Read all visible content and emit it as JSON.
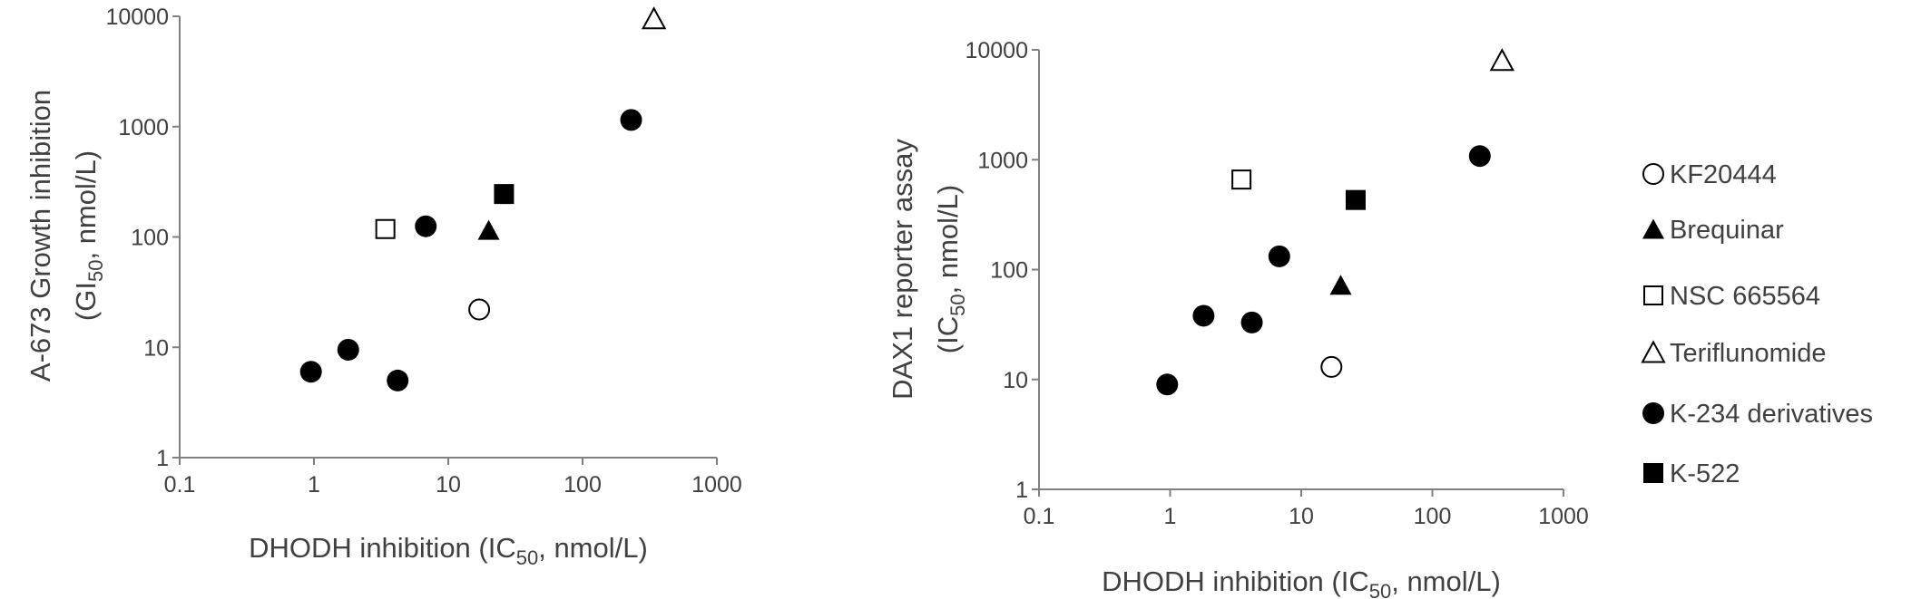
{
  "chart_data": [
    {
      "type": "scatter",
      "xscale": "log",
      "yscale": "log",
      "xlim": [
        0.1,
        1000
      ],
      "ylim": [
        1,
        10000
      ],
      "x_ticks": [
        "0.1",
        "1",
        "10",
        "100",
        "1000"
      ],
      "y_ticks": [
        "1",
        "10",
        "100",
        "1000",
        "10000"
      ],
      "xlabel": {
        "main": "DHODH inhibition (IC",
        "sub": "50",
        "rest": ", nmol/L)"
      },
      "ylabel": {
        "line1": "A-673 Growth inhibition",
        "line2_main": "(GI",
        "line2_sub": "50",
        "line2_rest": ", nmol/L)"
      },
      "grid": false,
      "series": [
        {
          "name": "KF20444",
          "marker": "circle-open",
          "points": [
            [
              17,
              22
            ]
          ]
        },
        {
          "name": "Brequinar",
          "marker": "triangle-filled",
          "points": [
            [
              20,
              115
            ]
          ]
        },
        {
          "name": "NSC 665564",
          "marker": "square-open",
          "points": [
            [
              3.4,
              118
            ]
          ]
        },
        {
          "name": "Teriflunomide",
          "marker": "triangle-open",
          "points": [
            [
              340,
              9500
            ]
          ]
        },
        {
          "name": "K-234 derivatives",
          "marker": "circle-filled",
          "points": [
            [
              0.95,
              6
            ],
            [
              1.8,
              9.5
            ],
            [
              4.2,
              5
            ],
            [
              6.8,
              125
            ],
            [
              230,
              1150
            ]
          ]
        },
        {
          "name": "K-522",
          "marker": "square-filled",
          "points": [
            [
              26,
              245
            ]
          ]
        }
      ]
    },
    {
      "type": "scatter",
      "xscale": "log",
      "yscale": "log",
      "xlim": [
        0.1,
        1000
      ],
      "ylim": [
        1,
        10000
      ],
      "x_ticks": [
        "0.1",
        "1",
        "10",
        "100",
        "1000"
      ],
      "y_ticks": [
        "1",
        "10",
        "100",
        "1000",
        "10000"
      ],
      "xlabel": {
        "main": "DHODH inhibition (IC",
        "sub": "50",
        "rest": ", nmol/L)"
      },
      "ylabel": {
        "line1": "DAX1 reporter assay",
        "line2_main": "(IC",
        "line2_sub": "50",
        "line2_rest": ", nmol/L)"
      },
      "grid": false,
      "series": [
        {
          "name": "KF20444",
          "marker": "circle-open",
          "points": [
            [
              17,
              13
            ]
          ]
        },
        {
          "name": "Brequinar",
          "marker": "triangle-filled",
          "points": [
            [
              20,
              72
            ]
          ]
        },
        {
          "name": "NSC 665564",
          "marker": "square-open",
          "points": [
            [
              3.5,
              660
            ]
          ]
        },
        {
          "name": "Teriflunomide",
          "marker": "triangle-open",
          "points": [
            [
              340,
              8000
            ]
          ]
        },
        {
          "name": "K-234 derivatives",
          "marker": "circle-filled",
          "points": [
            [
              0.95,
              9
            ],
            [
              1.8,
              38
            ],
            [
              4.2,
              33
            ],
            [
              6.8,
              132
            ],
            [
              230,
              1080
            ]
          ]
        },
        {
          "name": "K-522",
          "marker": "square-filled",
          "points": [
            [
              26,
              430
            ]
          ]
        }
      ]
    }
  ],
  "legend": {
    "placement": "right",
    "items": [
      {
        "label": "KF20444",
        "marker": "circle-open"
      },
      {
        "label": "Brequinar",
        "marker": "triangle-filled"
      },
      {
        "label": "NSC 665564",
        "marker": "square-open"
      },
      {
        "label": "Teriflunomide",
        "marker": "triangle-open"
      },
      {
        "label": "K-234 derivatives",
        "marker": "circle-filled"
      },
      {
        "label": "K-522",
        "marker": "square-filled"
      }
    ]
  },
  "colors": {
    "axis": "#808080",
    "text": "#404040",
    "marker": "#000000"
  }
}
